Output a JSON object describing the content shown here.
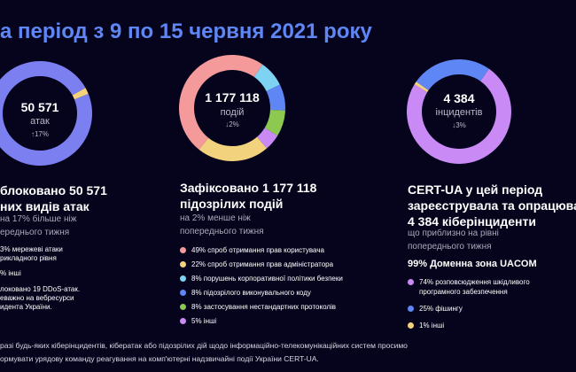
{
  "title": "а період з 9 по 15 червня 2021 року",
  "colors": {
    "background": "#05041c",
    "title": "#5f86f5"
  },
  "col1": {
    "center": {
      "value": "50 571",
      "unit": "атак",
      "change": "↑17%"
    },
    "heading": [
      "блоковано 50 571",
      "них видів атак"
    ],
    "sub": [
      "на 17% більше ніж",
      "ереднього тижня"
    ],
    "items": [
      "3% мережеві атаки",
      "рикладного рівня",
      "% інші"
    ],
    "note": [
      "локовано 19 DDoS-атак.",
      "еважно на вебресурси",
      "идента України."
    ],
    "chart_data": {
      "type": "pie",
      "values": [
        98,
        2
      ],
      "colors": [
        "#7b7ff0",
        "#f5d37a"
      ]
    }
  },
  "col2": {
    "center": {
      "value": "1 177 118",
      "unit": "подій",
      "change": "↓2%"
    },
    "heading": [
      "Зафіксовано 1 177 118",
      "підозрілих подій"
    ],
    "sub": [
      "на 2% менше ніж",
      "попереднього тижня"
    ],
    "items": [
      {
        "label": "49% спроб отримання прав користувача",
        "color": "#f49a9a"
      },
      {
        "label": "22% спроб отримання прав адміністратора",
        "color": "#f3d27e"
      },
      {
        "label": "8% порушень корпоративної політики безпеки",
        "color": "#7fd3f2"
      },
      {
        "label": "8% підозрілого виконувального коду",
        "color": "#5f86f5"
      },
      {
        "label": "8% застосування нестандартних протоколів",
        "color": "#8dc850"
      },
      {
        "label": "5% інші",
        "color": "#c98af5"
      }
    ],
    "chart_data": {
      "type": "pie",
      "values": [
        8,
        8,
        8,
        5,
        22,
        49
      ],
      "colors": [
        "#7fd3f2",
        "#5f86f5",
        "#8dc850",
        "#c98af5",
        "#f3d27e",
        "#f49a9a"
      ]
    }
  },
  "col3": {
    "center": {
      "value": "4 384",
      "unit": "інцидентів",
      "change": "↓3%"
    },
    "heading": [
      "CERT-UA у цей період",
      "зареєструвала та опрацювала",
      "4 384 кіберінциденти"
    ],
    "sub": [
      "що приблизно на рівні",
      "попереднього тижня"
    ],
    "zone": "99% Доменна зона UACOM",
    "items": [
      {
        "label": "74% розповсюдження шкідливого",
        "label2": "програмного забезпечення",
        "color": "#c98af5"
      },
      {
        "label": "25% фішингу",
        "color": "#5f86f5"
      },
      {
        "label": "1% інші",
        "color": "#f3d27e"
      }
    ],
    "chart_data": {
      "type": "pie",
      "values": [
        74,
        1,
        25
      ],
      "colors": [
        "#c98af5",
        "#f3d27e",
        "#5f86f5"
      ]
    }
  },
  "footer": [
    "разі будь-яких кіберінцидентів, кібератак або підозрілих дій щодо інформаційно-телекомунікаційних систем просимо",
    "ормувати урядову команду реагування на комп'ютерні надзвичайні події України CERT-UA."
  ]
}
